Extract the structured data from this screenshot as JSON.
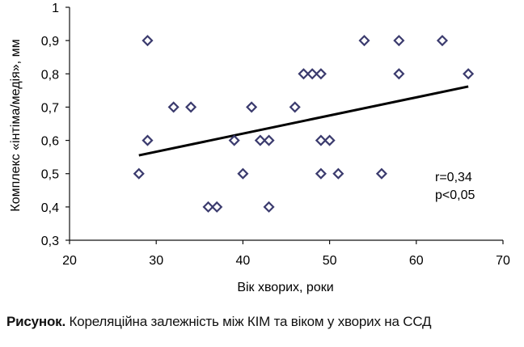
{
  "chart_data": {
    "type": "scatter",
    "xlabel": "Вік хворих, роки",
    "ylabel": "Комплекс «інтіма/медія», мм",
    "xlim": [
      20,
      70
    ],
    "ylim": [
      0.3,
      1
    ],
    "x_ticks": [
      "20",
      "30",
      "40",
      "50",
      "60",
      "70"
    ],
    "y_ticks": [
      "0,3",
      "0,4",
      "0,5",
      "0,6",
      "0,7",
      "0,8",
      "0,9",
      "1"
    ],
    "grid": false,
    "marker": "diamond-open",
    "marker_color": "#3b3b6e",
    "points": [
      {
        "x": 28,
        "y": 0.5
      },
      {
        "x": 29,
        "y": 0.9
      },
      {
        "x": 29,
        "y": 0.6
      },
      {
        "x": 32,
        "y": 0.7
      },
      {
        "x": 34,
        "y": 0.7
      },
      {
        "x": 36,
        "y": 0.4
      },
      {
        "x": 37,
        "y": 0.4
      },
      {
        "x": 39,
        "y": 0.6
      },
      {
        "x": 40,
        "y": 0.5
      },
      {
        "x": 41,
        "y": 0.7
      },
      {
        "x": 42,
        "y": 0.6
      },
      {
        "x": 43,
        "y": 0.6
      },
      {
        "x": 43,
        "y": 0.4
      },
      {
        "x": 46,
        "y": 0.7
      },
      {
        "x": 47,
        "y": 0.8
      },
      {
        "x": 48,
        "y": 0.8
      },
      {
        "x": 49,
        "y": 0.8
      },
      {
        "x": 49,
        "y": 0.6
      },
      {
        "x": 49,
        "y": 0.5
      },
      {
        "x": 50,
        "y": 0.6
      },
      {
        "x": 51,
        "y": 0.5
      },
      {
        "x": 54,
        "y": 0.9
      },
      {
        "x": 56,
        "y": 0.5
      },
      {
        "x": 58,
        "y": 0.9
      },
      {
        "x": 58,
        "y": 0.8
      },
      {
        "x": 63,
        "y": 0.9
      },
      {
        "x": 66,
        "y": 0.8
      }
    ],
    "trendline": {
      "x": [
        28,
        66
      ],
      "y": [
        0.555,
        0.762
      ]
    },
    "annotation": [
      "r=0,34",
      "p<0,05"
    ]
  },
  "caption": {
    "label": "Рисунок.",
    "text": " Кореляційна залежність між КІМ та віком у хворих на ССД"
  }
}
